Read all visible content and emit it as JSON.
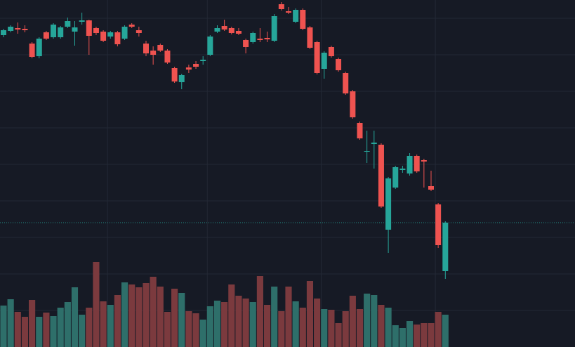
{
  "chart_data": {
    "type": "candlestick",
    "open": [
      444,
      450,
      454,
      453,
      432,
      414,
      448,
      441,
      441,
      456,
      449,
      463,
      465,
      454,
      449,
      442,
      448,
      439,
      459,
      451,
      432,
      422,
      430,
      422,
      397,
      377,
      398,
      403,
      407,
      416,
      449,
      457,
      454,
      450,
      437,
      434,
      439,
      440,
      436,
      488,
      478,
      463,
      480,
      455,
      434,
      396,
      427,
      410,
      390,
      364,
      319,
      278,
      289,
      288,
      167,
      227,
      252,
      247,
      272,
      266,
      229,
      203,
      108
    ],
    "high": [
      453,
      458,
      462,
      458,
      434,
      441,
      450,
      461,
      457,
      469,
      464,
      476,
      466,
      456,
      451,
      450,
      450,
      458,
      461,
      456,
      436,
      428,
      432,
      424,
      399,
      389,
      402,
      407,
      414,
      444,
      458,
      466,
      456,
      454,
      439,
      449,
      454,
      449,
      474,
      491,
      484,
      482,
      482,
      457,
      436,
      421,
      429,
      412,
      392,
      366,
      321,
      308,
      308,
      290,
      242,
      258,
      258,
      276,
      274,
      268,
      251,
      205,
      179
    ],
    "low": [
      441,
      448,
      446,
      448,
      411,
      411,
      437,
      439,
      439,
      454,
      429,
      459,
      416,
      444,
      434,
      439,
      428,
      437,
      454,
      442,
      414,
      402,
      420,
      403,
      376,
      367,
      390,
      396,
      402,
      414,
      447,
      450,
      445,
      444,
      418,
      432,
      434,
      434,
      434,
      479,
      474,
      461,
      451,
      424,
      388,
      382,
      412,
      392,
      359,
      325,
      295,
      262,
      254,
      198,
      134,
      225,
      248,
      244,
      248,
      227,
      222,
      141,
      97
    ],
    "close": [
      451,
      456,
      452,
      451,
      413,
      439,
      439,
      459,
      455,
      464,
      455,
      465,
      443,
      447,
      436,
      448,
      431,
      456,
      456,
      447,
      418,
      416,
      422,
      405,
      378,
      387,
      395,
      399,
      409,
      442,
      454,
      452,
      447,
      446,
      427,
      447,
      437,
      438,
      471,
      481,
      476,
      480,
      453,
      426,
      390,
      419,
      414,
      394,
      361,
      327,
      297,
      279,
      291,
      200,
      240,
      256,
      254,
      272,
      250,
      264,
      224,
      145,
      177
    ],
    "volume": [
      59,
      68,
      50,
      43,
      67,
      43,
      49,
      44,
      56,
      64,
      85,
      46,
      56,
      121,
      65,
      60,
      74,
      92,
      89,
      85,
      91,
      100,
      86,
      50,
      83,
      77,
      51,
      48,
      39,
      58,
      66,
      64,
      89,
      73,
      69,
      64,
      101,
      60,
      86,
      51,
      86,
      65,
      56,
      94,
      69,
      54,
      53,
      34,
      51,
      73,
      54,
      76,
      74,
      60,
      56,
      31,
      27,
      37,
      32,
      34,
      34,
      50,
      46
    ],
    "ylim": [
      0,
      494
    ],
    "vlim": [
      0,
      494
    ],
    "yticks": [
      52,
      104,
      156,
      208,
      260,
      312,
      364,
      416,
      468
    ],
    "xticks": [
      15,
      29,
      45,
      61
    ],
    "grid": true,
    "price_line": 177,
    "up_color": "#26a69a",
    "down_color": "#ef5350",
    "volume_up_color": "#2e6f6a",
    "volume_down_color": "#7b3a3e",
    "grid_color": "#232835"
  }
}
